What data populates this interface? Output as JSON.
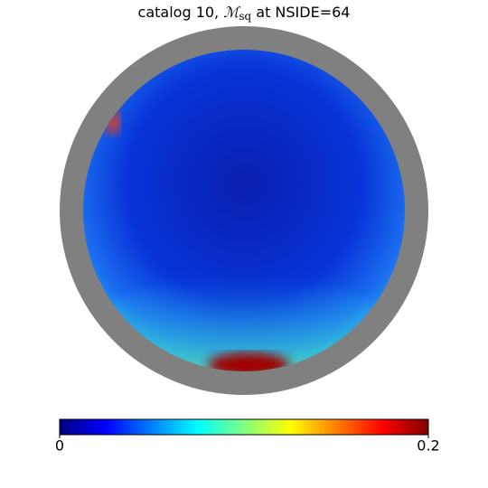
{
  "chart_data": {
    "type": "sky-map",
    "title_parts": [
      "catalog 10, ",
      "ℳ",
      "sq",
      " at NSIDE=64"
    ],
    "colormap": "jet",
    "clim": [
      0,
      0.2
    ],
    "cticks": [
      0,
      0.2
    ]
  }
}
